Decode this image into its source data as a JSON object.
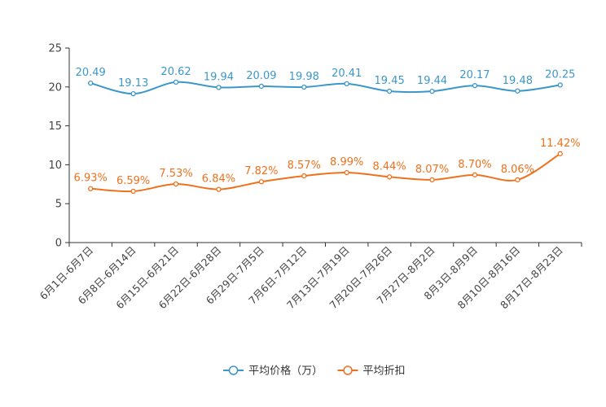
{
  "chart_data": {
    "type": "line",
    "title": "",
    "xlabel": "",
    "ylabel": "",
    "ylim": [
      0,
      25
    ],
    "yticks": [
      0,
      5,
      10,
      15,
      20,
      25
    ],
    "grid": false,
    "legend_position": "bottom",
    "categories": [
      "6月1日-6月7日",
      "6月8日-6月14日",
      "6月15日-6月21日",
      "6月22日-6月28日",
      "6月29日-7月5日",
      "7月6日-7月12日",
      "7月13日-7月19日",
      "7月20日-7月26日",
      "7月27日-8月2日",
      "8月3日-8月9日",
      "8月10日-8月16日",
      "8月17日-8月23日"
    ],
    "series": [
      {
        "name": "平均价格（万）",
        "color": "#3c97c9",
        "values": [
          20.49,
          19.13,
          20.62,
          19.94,
          20.09,
          19.98,
          20.41,
          19.45,
          19.44,
          20.17,
          19.48,
          20.25
        ],
        "labels": [
          "20.49",
          "19.13",
          "20.62",
          "19.94",
          "20.09",
          "19.98",
          "20.41",
          "19.45",
          "19.44",
          "20.17",
          "19.48",
          "20.25"
        ]
      },
      {
        "name": "平均折扣",
        "color": "#f0711d",
        "values": [
          6.93,
          6.59,
          7.53,
          6.84,
          7.82,
          8.57,
          8.99,
          8.44,
          8.07,
          8.7,
          8.06,
          11.42
        ],
        "labels": [
          "6.93%",
          "6.59%",
          "7.53%",
          "6.84%",
          "7.82%",
          "8.57%",
          "8.99%",
          "8.44%",
          "8.07%",
          "8.70%",
          "8.06%",
          "11.42%"
        ]
      }
    ]
  }
}
